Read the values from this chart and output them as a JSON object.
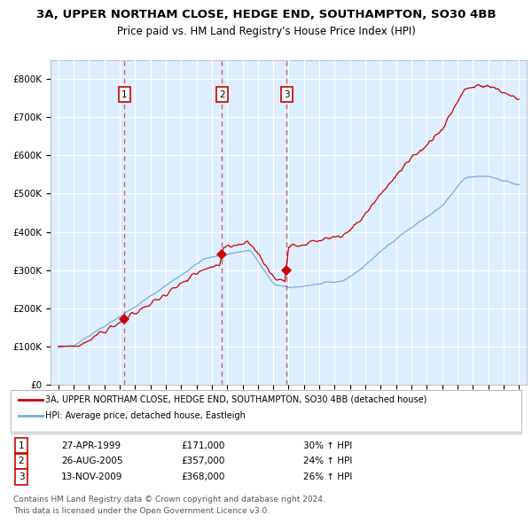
{
  "title1": "3A, UPPER NORTHAM CLOSE, HEDGE END, SOUTHAMPTON, SO30 4BB",
  "title2": "Price paid vs. HM Land Registry's House Price Index (HPI)",
  "legend_line1": "3A, UPPER NORTHAM CLOSE, HEDGE END, SOUTHAMPTON, SO30 4BB (detached house)",
  "legend_line2": "HPI: Average price, detached house, Eastleigh",
  "purchases": [
    {
      "label": "1",
      "date_str": "27-APR-1999",
      "price": 171000,
      "pct": "30%",
      "x_year": 1999.32
    },
    {
      "label": "2",
      "date_str": "26-AUG-2005",
      "price": 357000,
      "pct": "24%",
      "x_year": 2005.65
    },
    {
      "label": "3",
      "date_str": "13-NOV-2009",
      "price": 368000,
      "pct": "26%",
      "x_year": 2009.87
    }
  ],
  "footer1": "Contains HM Land Registry data © Crown copyright and database right 2024.",
  "footer2": "This data is licensed under the Open Government Licence v3.0.",
  "red_color": "#cc0000",
  "blue_color": "#7aaddc",
  "bg_color": "#ddeeff",
  "grid_color": "#ffffff",
  "ylim": [
    0,
    850000
  ],
  "xlim_start": 1994.5,
  "xlim_end": 2025.5
}
